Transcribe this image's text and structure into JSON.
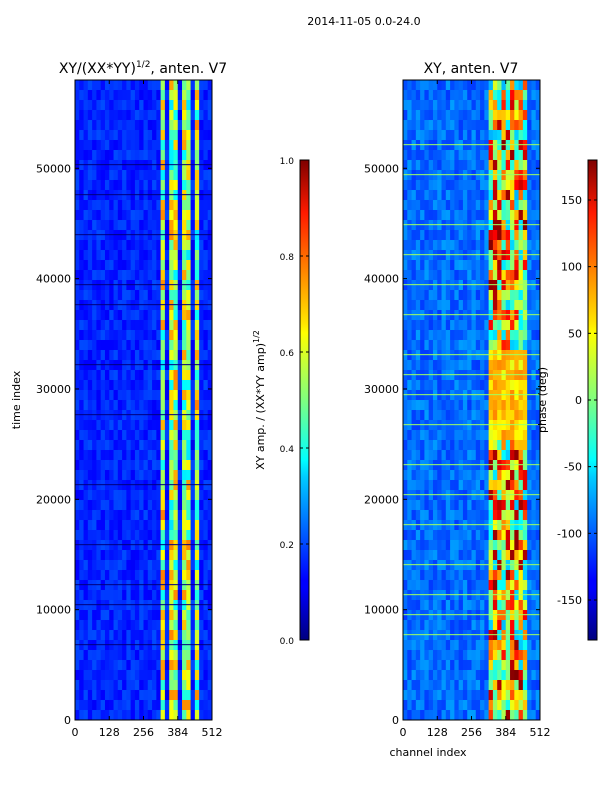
{
  "suptitle": "2014-11-05 0.0-24.0",
  "chart_data": [
    {
      "type": "heatmap",
      "title_main": "XY/(XX*YY)",
      "title_sup": "1/2",
      "title_rest": ", anten. V7",
      "xlabel": "",
      "ylabel": "time index",
      "xlim": [
        0,
        512
      ],
      "ylim": [
        0,
        58000
      ],
      "xticks": [
        "0",
        "128",
        "256",
        "384",
        "512"
      ],
      "yticks": [
        "0",
        "10000",
        "20000",
        "30000",
        "40000",
        "50000"
      ],
      "colormap": "jet",
      "colorbar": {
        "label_main": "XY amp. / (XX*YY amp)",
        "label_sup": "1/2",
        "range": [
          0.0,
          1.0
        ],
        "ticks": [
          "0.0",
          "0.2",
          "0.4",
          "0.6",
          "0.8",
          "1.0"
        ]
      }
    },
    {
      "type": "heatmap",
      "title": "XY, anten. V7",
      "xlabel": "channel index",
      "ylabel": "",
      "xlim": [
        0,
        512
      ],
      "ylim": [
        0,
        58000
      ],
      "xticks": [
        "0",
        "128",
        "256",
        "384",
        "512"
      ],
      "yticks": [
        "0",
        "10000",
        "20000",
        "30000",
        "40000",
        "50000"
      ],
      "colormap": "jet",
      "colorbar": {
        "label": "phase (deg)",
        "range": [
          -180,
          180
        ],
        "ticks": [
          "-150",
          "-100",
          "-50",
          "0",
          "50",
          "100",
          "150"
        ]
      }
    }
  ]
}
